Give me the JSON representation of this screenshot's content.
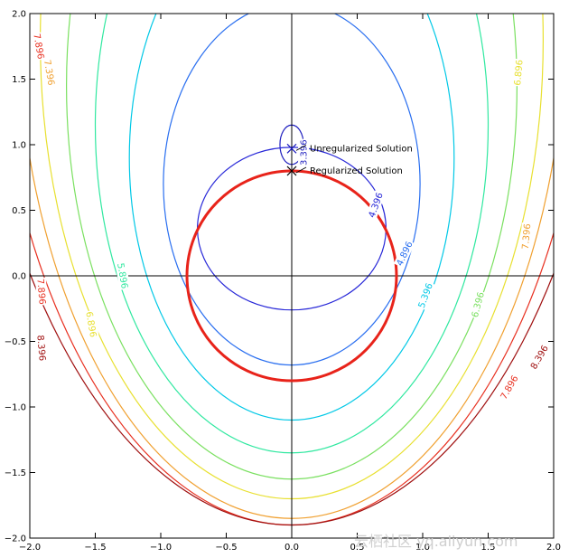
{
  "chart_data": {
    "type": "contour",
    "title": "",
    "xlabel": "",
    "ylabel": "",
    "xlim": [
      -2.0,
      2.0
    ],
    "ylim": [
      -2.0,
      2.0
    ],
    "xticks": [
      "−2.0",
      "−1.5",
      "−1.0",
      "−0.5",
      "0.0",
      "0.5",
      "1.0",
      "1.5",
      "2.0"
    ],
    "yticks": [
      "2.0",
      "1.5",
      "1.0",
      "0.5",
      "0.0",
      "−0.5",
      "−1.0",
      "−1.5",
      "−2.0"
    ],
    "grid": false,
    "axes_lines": {
      "x0": true,
      "y0": true
    },
    "contours": [
      {
        "level": "3.396",
        "color": "#1f1fbf",
        "center": [
          0.0,
          1.0
        ],
        "rx": 0.09,
        "ry": 0.15,
        "labels": [
          {
            "text": "3.396",
            "pos": [
              0.09,
              0.94
            ],
            "rot": -90
          }
        ]
      },
      {
        "level": "4.396",
        "color": "#2828d8",
        "center": [
          0.0,
          0.36
        ],
        "rx": 0.72,
        "ry": 0.62,
        "labels": [
          {
            "text": "4.396",
            "pos": [
              0.64,
              0.54
            ],
            "rot": -70
          }
        ]
      },
      {
        "level": "4.896",
        "color": "#2a6ff0",
        "center": [
          0.0,
          0.7
        ],
        "rx": 0.98,
        "ry": 1.38,
        "labels": [
          {
            "text": "4.896",
            "pos": [
              0.86,
              0.17
            ],
            "rot": -65
          }
        ]
      },
      {
        "level": "5.396",
        "color": "#00c8e6",
        "center": [
          0.0,
          0.9
        ],
        "rx": 1.24,
        "ry": 2.0,
        "labels": [
          {
            "text": "5.396",
            "pos": [
              1.02,
              -0.15
            ],
            "rot": -70
          }
        ]
      },
      {
        "level": "5.896",
        "color": "#30e8a0",
        "center": [
          0.0,
          1.15
        ],
        "rx": 1.5,
        "ry": 2.5,
        "labels": [
          {
            "text": "5.896",
            "pos": [
              -1.29,
              0.0
            ],
            "rot": 80
          }
        ]
      },
      {
        "level": "6.396",
        "color": "#7ae060",
        "center": [
          0.0,
          1.45
        ],
        "rx": 1.72,
        "ry": 3.0,
        "labels": [
          {
            "text": "6.396",
            "pos": [
              1.42,
              -0.22
            ],
            "rot": -75
          }
        ]
      },
      {
        "level": "6.896",
        "color": "#e8e030",
        "center": [
          0.0,
          1.8
        ],
        "rx": 1.92,
        "ry": 3.5,
        "labels": [
          {
            "text": "6.896",
            "pos": [
              -1.53,
              -0.37
            ],
            "rot": 80
          },
          {
            "text": "6.896",
            "pos": [
              1.73,
              1.55
            ],
            "rot": -85
          }
        ]
      },
      {
        "level": "7.396",
        "color": "#f0a030",
        "center": [
          0.0,
          2.1
        ],
        "rx": 2.1,
        "ry": 3.95,
        "labels": [
          {
            "text": "7.396",
            "pos": [
              -1.85,
              1.55
            ],
            "rot": 80
          },
          {
            "text": "7.396",
            "pos": [
              1.79,
              0.3
            ],
            "rot": -85
          }
        ]
      },
      {
        "level": "7.896",
        "color": "#e83020",
        "center": [
          0.0,
          2.5
        ],
        "rx": 2.3,
        "ry": 4.4,
        "labels": [
          {
            "text": "7.896",
            "pos": [
              -1.93,
              1.75
            ],
            "rot": 80
          },
          {
            "text": "7.896",
            "pos": [
              -1.91,
              -0.12
            ],
            "rot": 85
          },
          {
            "text": "7.896",
            "pos": [
              1.66,
              -0.85
            ],
            "rot": -60
          }
        ]
      },
      {
        "level": "8.396",
        "color": "#a01010",
        "center": [
          0.0,
          2.9
        ],
        "rx": 2.5,
        "ry": 4.8,
        "labels": [
          {
            "text": "8.396",
            "pos": [
              -1.91,
              -0.55
            ],
            "rot": 85
          },
          {
            "text": "8.396",
            "pos": [
              1.89,
              -0.62
            ],
            "rot": -60
          }
        ]
      }
    ],
    "constraint_circle": {
      "center": [
        0.0,
        0.0
      ],
      "radius": 0.8,
      "color": "#e8231a"
    },
    "points": [
      {
        "name": "Unregularized Solution",
        "x": 0.0,
        "y": 0.97,
        "marker": "x",
        "color": "#1f1fbf"
      },
      {
        "name": "Regularized Solution",
        "x": 0.0,
        "y": 0.8,
        "marker": "x",
        "color": "#000000"
      }
    ]
  },
  "watermark": "云栖社区 yq.aliyun.com"
}
